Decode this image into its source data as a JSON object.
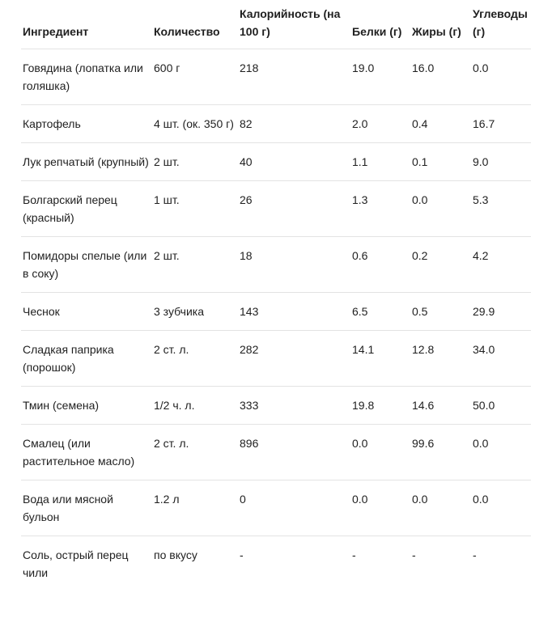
{
  "table": {
    "headers": [
      "Ингредиент",
      "Количество",
      "Калорийность (на 100 г)",
      "Белки (г)",
      "Жиры (г)",
      "Углеводы (г)"
    ],
    "rows": [
      [
        "Говядина (лопатка или голяшка)",
        "600 г",
        "218",
        "19.0",
        "16.0",
        "0.0"
      ],
      [
        "Картофель",
        "4 шт. (ок. 350 г)",
        "82",
        "2.0",
        "0.4",
        "16.7"
      ],
      [
        "Лук репчатый (крупный)",
        "2 шт.",
        "40",
        "1.1",
        "0.1",
        "9.0"
      ],
      [
        "Болгарский перец (красный)",
        "1 шт.",
        "26",
        "1.3",
        "0.0",
        "5.3"
      ],
      [
        "Помидоры спелые (или в соку)",
        "2 шт.",
        "18",
        "0.6",
        "0.2",
        "4.2"
      ],
      [
        "Чеснок",
        "3 зубчика",
        "143",
        "6.5",
        "0.5",
        "29.9"
      ],
      [
        "Сладкая паприка (порошок)",
        "2 ст. л.",
        "282",
        "14.1",
        "12.8",
        "34.0"
      ],
      [
        "Тмин (семена)",
        "1/2 ч. л.",
        "333",
        "19.8",
        "14.6",
        "50.0"
      ],
      [
        "Смалец (или растительное масло)",
        "2 ст. л.",
        "896",
        "0.0",
        "99.6",
        "0.0"
      ],
      [
        "Вода или мясной бульон",
        "1.2 л",
        "0",
        "0.0",
        "0.0",
        "0.0"
      ],
      [
        "Соль, острый перец чили",
        "по вкусу",
        "-",
        "-",
        "-",
        "-"
      ]
    ]
  }
}
